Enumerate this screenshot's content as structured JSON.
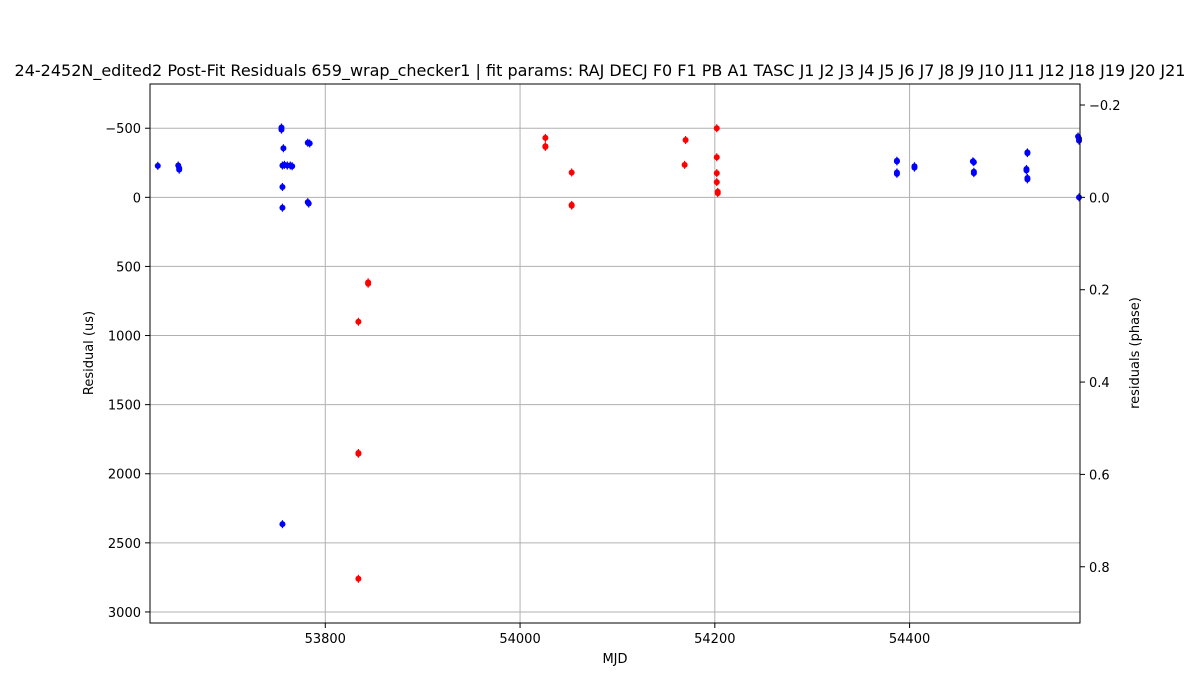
{
  "chart_data": {
    "type": "scatter",
    "title": "24-2452N_edited2 Post-Fit Residuals 659_wrap_checker1 | fit params: RAJ DECJ F0 F1 PB A1 TASC J1 J2 J3 J4 J5 J6 J7 J8 J9 J10 J11 J12 J18 J19 J20 J21",
    "xlabel": "MJD",
    "ylabel": "Residual (us)",
    "y2label": "residuals (phase)",
    "xlim": [
      53620,
      54575
    ],
    "ylim": [
      3080,
      -820
    ],
    "y_inverted": true,
    "y2lim": [
      0.9218,
      -0.2455
    ],
    "grid": true,
    "x_ticks": [
      53800,
      54000,
      54200,
      54400
    ],
    "y_ticks": [
      -500,
      0,
      500,
      1000,
      1500,
      2000,
      2500,
      3000
    ],
    "y2_ticks": [
      -0.2,
      0.0,
      0.2,
      0.4,
      0.6,
      0.8
    ],
    "y2_tick_labels": [
      "−0.2",
      "0.0",
      "0.2",
      "0.4",
      "0.6",
      "0.8"
    ],
    "series": [
      {
        "color": "#0000ff",
        "points": [
          [
            53628,
            -228
          ],
          [
            53649,
            -230
          ],
          [
            53650,
            -210
          ],
          [
            53650,
            -200
          ],
          [
            53755,
            -505
          ],
          [
            53755,
            -490
          ],
          [
            53757,
            -355
          ],
          [
            53756,
            -230
          ],
          [
            53758,
            -235
          ],
          [
            53761,
            -230
          ],
          [
            53764,
            -230
          ],
          [
            53766,
            -225
          ],
          [
            53756,
            -75
          ],
          [
            53756,
            75
          ],
          [
            53756,
            2365
          ],
          [
            53782,
            -395
          ],
          [
            53784,
            -390
          ],
          [
            53782,
            35
          ],
          [
            53783,
            45
          ],
          [
            54387,
            -265
          ],
          [
            54387,
            -260
          ],
          [
            54387,
            -180
          ],
          [
            54387,
            -170
          ],
          [
            54405,
            -225
          ],
          [
            54405,
            -215
          ],
          [
            54465,
            -260
          ],
          [
            54466,
            -255
          ],
          [
            54466,
            -185
          ],
          [
            54466,
            -175
          ],
          [
            54521,
            -325
          ],
          [
            54521,
            -320
          ],
          [
            54520,
            -205
          ],
          [
            54520,
            -195
          ],
          [
            54521,
            -140
          ],
          [
            54521,
            -130
          ],
          [
            54573,
            -440
          ],
          [
            54574,
            -425
          ],
          [
            54574,
            -410
          ],
          [
            54574,
            0
          ]
        ]
      },
      {
        "color": "#ff0000",
        "points": [
          [
            53834,
            900
          ],
          [
            53834,
            1850
          ],
          [
            53834,
            1855
          ],
          [
            53834,
            2760
          ],
          [
            53844,
            615
          ],
          [
            53844,
            625
          ],
          [
            54026,
            -430
          ],
          [
            54026,
            -370
          ],
          [
            54026,
            -365
          ],
          [
            54053,
            -180
          ],
          [
            54053,
            55
          ],
          [
            54053,
            60
          ],
          [
            54170,
            -415
          ],
          [
            54169,
            -235
          ],
          [
            54202,
            -500
          ],
          [
            54202,
            -290
          ],
          [
            54202,
            -175
          ],
          [
            54202,
            -110
          ],
          [
            54203,
            -40
          ],
          [
            54203,
            -30
          ]
        ]
      }
    ]
  }
}
